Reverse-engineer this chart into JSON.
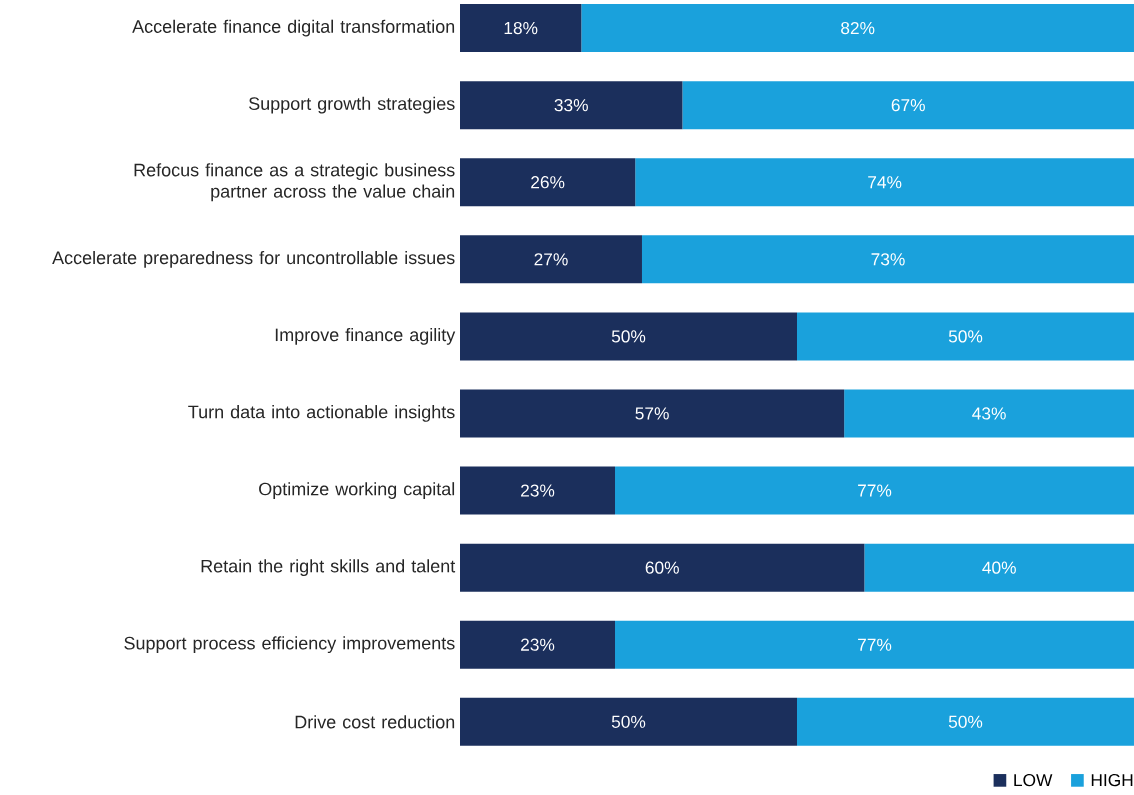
{
  "chart_data": {
    "type": "bar",
    "orientation": "horizontal",
    "stacked": true,
    "categories": [
      "Accelerate finance digital transformation",
      "Support growth strategies",
      "Refocus finance as a strategic business partner across the value chain",
      "Accelerate preparedness for uncontrollable issues",
      "Improve finance agility",
      "Turn data into actionable insights",
      "Optimize working capital",
      "Retain the right skills and talent",
      "Support process efficiency improvements",
      "Drive cost reduction"
    ],
    "series": [
      {
        "name": "LOW",
        "color": "#1b2f5c",
        "values": [
          18,
          33,
          26,
          27,
          50,
          57,
          23,
          60,
          23,
          50
        ],
        "value_labels": [
          "18%",
          "33%",
          "26%",
          "27%",
          "50%",
          "57%",
          "23%",
          "60%",
          "23%",
          "50%"
        ]
      },
      {
        "name": "HIGH",
        "color": "#1aa1dc",
        "values": [
          82,
          67,
          74,
          73,
          50,
          43,
          77,
          40,
          77,
          50
        ],
        "value_labels": [
          "82%",
          "67%",
          "74%",
          "73%",
          "50%",
          "43%",
          "77%",
          "40%",
          "77%",
          "50%"
        ]
      }
    ],
    "xlim": [
      0,
      100
    ],
    "tick_labels": "y",
    "legend": "bottom right",
    "grid": false
  }
}
